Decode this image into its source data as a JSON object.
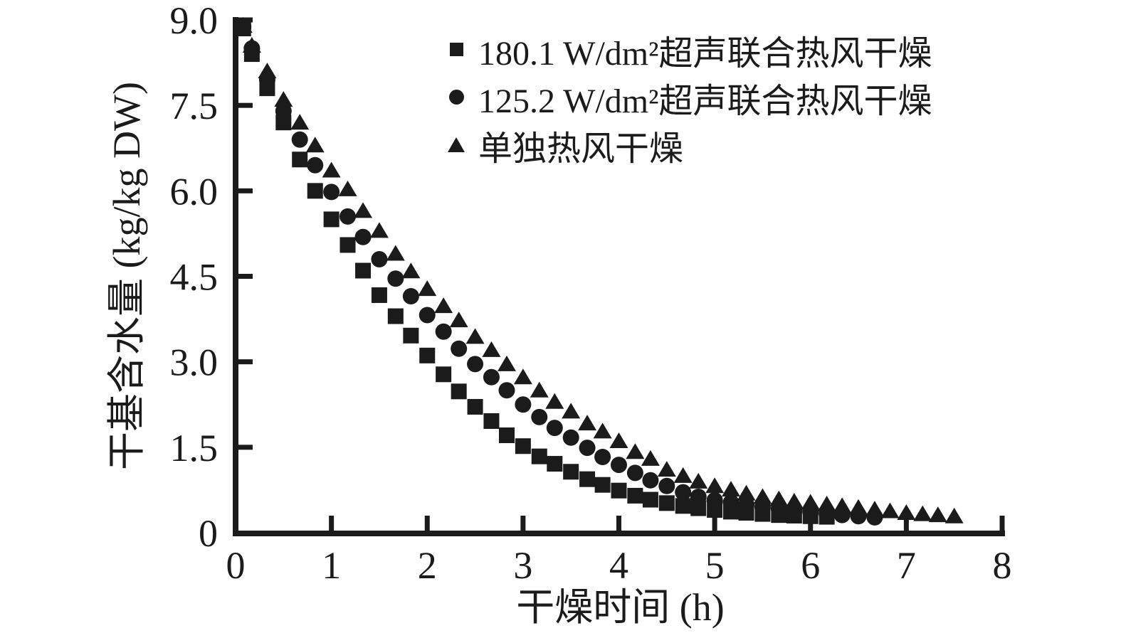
{
  "figure": {
    "background": "#ffffff",
    "ink_color": "#1b1b1b"
  },
  "chart_data": {
    "type": "scatter",
    "title": "",
    "xlabel": "干燥时间 (h)",
    "ylabel": "干基含水量 (kg/kg DW)",
    "xlim": [
      0,
      8
    ],
    "ylim": [
      0,
      9.0
    ],
    "x_ticks": [
      1,
      2,
      3,
      4,
      5,
      6,
      7,
      8
    ],
    "x_tick_labels": {
      "values": [
        0,
        1,
        2,
        3,
        4,
        5,
        6,
        7,
        8
      ],
      "labels": [
        "0",
        "1",
        "2",
        "3",
        "4",
        "5",
        "6",
        "7",
        "8"
      ]
    },
    "y_ticks": [
      1.5,
      3.0,
      4.5,
      6.0,
      7.5,
      9.0
    ],
    "y_tick_labels": {
      "values": [
        0,
        1.5,
        3.0,
        4.5,
        6.0,
        7.5,
        9.0
      ],
      "labels": [
        "0",
        "1.5",
        "3.0",
        "4.5",
        "6.0",
        "7.5",
        "9.0"
      ]
    },
    "grid": false,
    "legend_position": "upper-right-inside",
    "series": [
      {
        "name": "180.1 W/dm²超声联合热风干燥",
        "marker": "square",
        "x": [
          0.08,
          0.17,
          0.33,
          0.5,
          0.67,
          0.83,
          1.0,
          1.17,
          1.33,
          1.5,
          1.67,
          1.83,
          2.0,
          2.17,
          2.33,
          2.5,
          2.67,
          2.83,
          3.0,
          3.17,
          3.33,
          3.5,
          3.67,
          3.83,
          4.0,
          4.17,
          4.33,
          4.5,
          4.67,
          4.83,
          5.0,
          5.17,
          5.33,
          5.5,
          5.67,
          5.83,
          6.0,
          6.17
        ],
        "y": [
          8.85,
          8.4,
          7.8,
          7.2,
          6.55,
          6.0,
          5.5,
          5.05,
          4.6,
          4.17,
          3.8,
          3.46,
          3.11,
          2.78,
          2.48,
          2.21,
          1.96,
          1.71,
          1.52,
          1.34,
          1.21,
          1.07,
          0.94,
          0.84,
          0.74,
          0.65,
          0.58,
          0.52,
          0.47,
          0.43,
          0.4,
          0.37,
          0.35,
          0.33,
          0.31,
          0.3,
          0.29,
          0.28
        ]
      },
      {
        "name": "125.2 W/dm²超声联合热风干燥",
        "marker": "circle",
        "x": [
          0.08,
          0.17,
          0.33,
          0.5,
          0.67,
          0.83,
          1.0,
          1.17,
          1.33,
          1.5,
          1.67,
          1.83,
          2.0,
          2.17,
          2.33,
          2.5,
          2.67,
          2.83,
          3.0,
          3.17,
          3.33,
          3.5,
          3.67,
          3.83,
          4.0,
          4.17,
          4.33,
          4.5,
          4.67,
          4.83,
          5.0,
          5.17,
          5.33,
          5.5,
          5.67,
          5.83,
          6.0,
          6.17,
          6.33,
          6.5,
          6.67
        ],
        "y": [
          8.88,
          8.5,
          7.95,
          7.4,
          6.9,
          6.45,
          5.98,
          5.55,
          5.19,
          4.8,
          4.46,
          4.15,
          3.82,
          3.53,
          3.23,
          2.96,
          2.73,
          2.5,
          2.25,
          2.03,
          1.84,
          1.67,
          1.49,
          1.33,
          1.19,
          1.05,
          0.92,
          0.82,
          0.71,
          0.63,
          0.57,
          0.53,
          0.49,
          0.45,
          0.42,
          0.39,
          0.36,
          0.33,
          0.31,
          0.29,
          0.27
        ]
      },
      {
        "name": "单独热风干燥",
        "marker": "triangle",
        "x": [
          0.08,
          0.17,
          0.33,
          0.5,
          0.67,
          0.83,
          1.0,
          1.17,
          1.33,
          1.5,
          1.67,
          1.83,
          2.0,
          2.17,
          2.33,
          2.5,
          2.67,
          2.83,
          3.0,
          3.17,
          3.33,
          3.5,
          3.67,
          3.83,
          4.0,
          4.17,
          4.33,
          4.5,
          4.67,
          4.83,
          5.0,
          5.17,
          5.33,
          5.5,
          5.67,
          5.83,
          6.0,
          6.17,
          6.33,
          6.5,
          6.67,
          6.83,
          7.0,
          7.17,
          7.33,
          7.5
        ],
        "y": [
          8.9,
          8.55,
          8.1,
          7.6,
          7.2,
          6.8,
          6.36,
          6.03,
          5.65,
          5.3,
          4.9,
          4.59,
          4.28,
          3.98,
          3.73,
          3.44,
          3.21,
          2.96,
          2.73,
          2.5,
          2.3,
          2.13,
          1.92,
          1.78,
          1.61,
          1.42,
          1.3,
          1.11,
          1.0,
          0.9,
          0.82,
          0.76,
          0.69,
          0.63,
          0.59,
          0.55,
          0.53,
          0.5,
          0.47,
          0.44,
          0.41,
          0.38,
          0.35,
          0.33,
          0.31,
          0.29
        ]
      }
    ]
  }
}
